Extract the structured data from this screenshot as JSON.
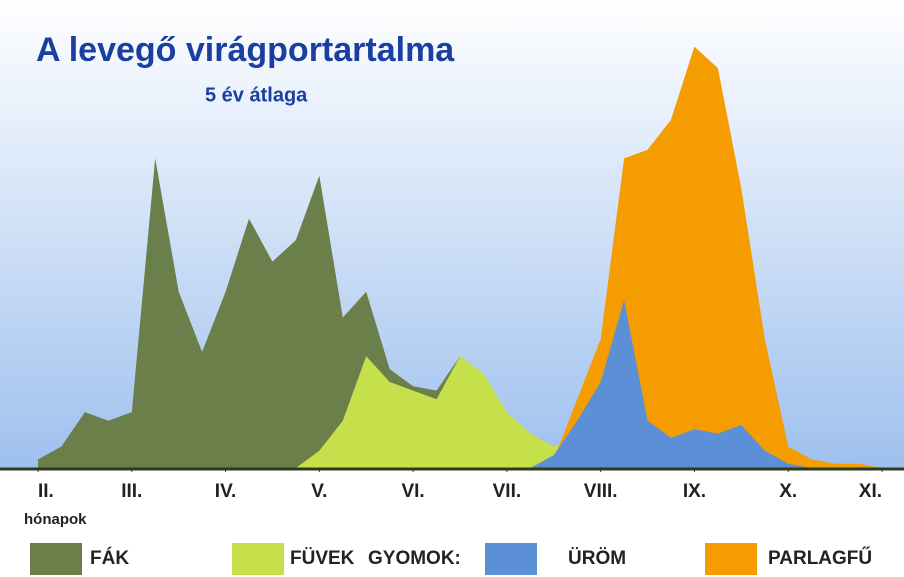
{
  "chart_data": {
    "type": "area",
    "title": "A levegő virágportartalma",
    "subtitle": "5 év átlaga",
    "x_label": "hónapok",
    "legend_group_label": "GYOMOK:",
    "x": [
      2,
      2.25,
      2.5,
      2.75,
      3,
      3.25,
      3.5,
      3.75,
      4,
      4.25,
      4.5,
      4.75,
      5,
      5.25,
      5.5,
      5.75,
      6,
      6.25,
      6.5,
      6.75,
      7,
      7.25,
      7.5,
      7.75,
      8,
      8.25,
      8.5,
      8.75,
      9,
      9.25,
      9.5,
      9.75,
      10,
      10.25,
      10.5,
      10.75,
      11
    ],
    "xlim": [
      2,
      11
    ],
    "xticks": [
      {
        "value": 2,
        "label": "II."
      },
      {
        "value": 3,
        "label": "III."
      },
      {
        "value": 4,
        "label": "IV."
      },
      {
        "value": 5,
        "label": "V."
      },
      {
        "value": 6,
        "label": "VI."
      },
      {
        "value": 7,
        "label": "VII."
      },
      {
        "value": 8,
        "label": "VIII."
      },
      {
        "value": 9,
        "label": "IX."
      },
      {
        "value": 10,
        "label": "X."
      },
      {
        "value": 11,
        "label": "XI."
      }
    ],
    "ylim": [
      0,
      100
    ],
    "series": [
      {
        "name": "FÁK",
        "color": "#6b7f4a",
        "values": [
          2,
          5,
          13,
          11,
          13,
          72,
          41,
          27,
          41,
          58,
          48,
          53,
          68,
          35,
          41,
          23,
          19,
          18,
          26,
          20,
          13,
          7,
          3,
          1,
          0,
          0,
          0,
          0,
          0,
          0,
          0,
          0,
          0,
          0,
          0,
          0,
          0
        ]
      },
      {
        "name": "FÜVEK",
        "color": "#c5e04a",
        "values": [
          0,
          0,
          0,
          0,
          0,
          0,
          0,
          0,
          0,
          0,
          0,
          0,
          4,
          11,
          26,
          20,
          18,
          16,
          26,
          22,
          13,
          8,
          5,
          7,
          3,
          2,
          1,
          1,
          1,
          1,
          1,
          1,
          0,
          0,
          0,
          0,
          0
        ]
      },
      {
        "name": "PARLAGFŰ",
        "color": "#f59c00",
        "values": [
          0,
          0,
          0,
          0,
          0,
          0,
          0,
          0,
          0,
          0,
          0,
          0,
          0,
          0,
          0,
          0,
          0,
          0,
          0,
          0,
          0,
          0,
          2,
          16,
          30,
          72,
          74,
          81,
          98,
          93,
          65,
          30,
          5,
          2,
          1,
          1,
          0
        ]
      },
      {
        "name": "ÜRÖM",
        "color": "#5b8fd6",
        "values": [
          0,
          0,
          0,
          0,
          0,
          0,
          0,
          0,
          0,
          0,
          0,
          0,
          0,
          0,
          0,
          0,
          0,
          0,
          0,
          0,
          0,
          0,
          3,
          11,
          20,
          39,
          11,
          7,
          9,
          8,
          10,
          4,
          1,
          0,
          0,
          0,
          0
        ]
      }
    ]
  }
}
